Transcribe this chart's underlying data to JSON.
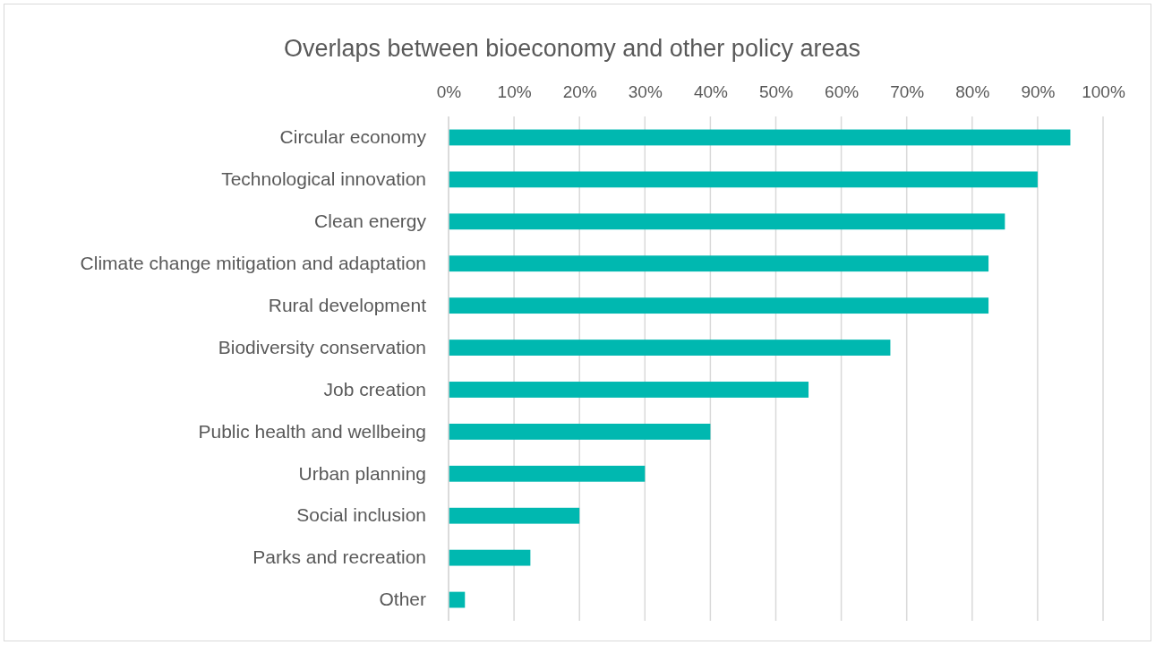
{
  "chart_data": {
    "type": "bar",
    "orientation": "horizontal",
    "title": "Overlaps between bioeconomy and other policy areas",
    "categories": [
      "Circular economy",
      "Technological innovation",
      "Clean energy",
      "Climate change mitigation and adaptation",
      "Rural development",
      "Biodiversity conservation",
      "Job creation",
      "Public health and wellbeing",
      "Urban planning",
      "Social inclusion",
      "Parks and recreation",
      "Other"
    ],
    "values": [
      95,
      90,
      85,
      82.5,
      82.5,
      67.5,
      55,
      40,
      30,
      20,
      12.5,
      2.5
    ],
    "color": "#00b8b0",
    "xlim": [
      0,
      100
    ],
    "xticks": [
      {
        "value": 0,
        "label": "0%"
      },
      {
        "value": 10,
        "label": "10%"
      },
      {
        "value": 20,
        "label": "20%"
      },
      {
        "value": 30,
        "label": "30%"
      },
      {
        "value": 40,
        "label": "40%"
      },
      {
        "value": 50,
        "label": "50%"
      },
      {
        "value": 60,
        "label": "60%"
      },
      {
        "value": 70,
        "label": "70%"
      },
      {
        "value": 80,
        "label": "80%"
      },
      {
        "value": 90,
        "label": "90%"
      },
      {
        "value": 100,
        "label": "100%"
      }
    ],
    "grid": "x"
  }
}
